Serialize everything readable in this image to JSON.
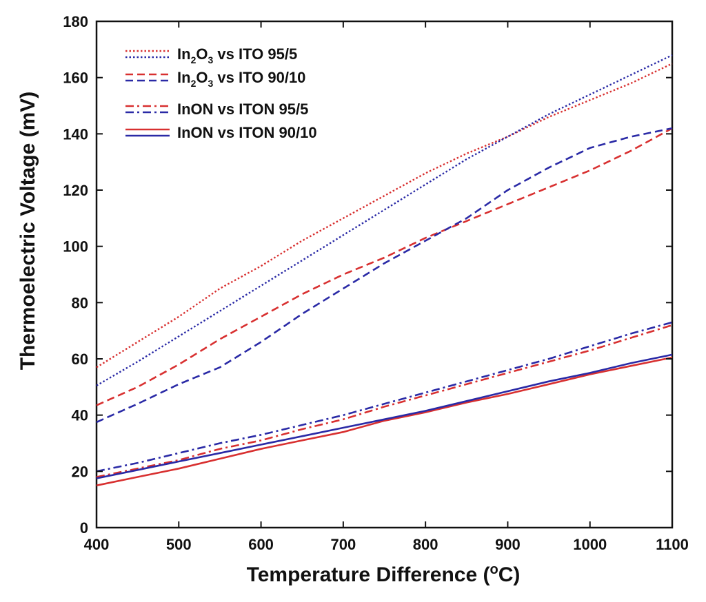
{
  "chart_data": {
    "type": "line",
    "title": "",
    "xlabel": {
      "prefix": "Temperature Difference (",
      "sup": "o",
      "suffix": "C)"
    },
    "ylabel": "Thermoelectric Voltage (mV)",
    "xlim": [
      400,
      1100
    ],
    "ylim": [
      0,
      180
    ],
    "xticks": [
      400,
      500,
      600,
      700,
      800,
      900,
      1000,
      1100
    ],
    "yticks": [
      0,
      20,
      40,
      60,
      80,
      100,
      120,
      140,
      160,
      180
    ],
    "grid": false,
    "legend_position": "top-left",
    "colors": {
      "red": "#d83030",
      "blue": "#2a2aa6",
      "axis": "#111111"
    },
    "x": [
      400,
      450,
      500,
      550,
      600,
      650,
      700,
      750,
      800,
      850,
      900,
      950,
      1000,
      1050,
      1100
    ],
    "legend": [
      {
        "id": "in2o3-95-5",
        "style": "dotted",
        "text": [
          {
            "t": "In"
          },
          {
            "t": "2",
            "sub": true
          },
          {
            "t": "O"
          },
          {
            "t": "3",
            "sub": true
          },
          {
            "t": "  vs ITO 95/5"
          }
        ]
      },
      {
        "id": "in2o3-90-10",
        "style": "dashed",
        "text": [
          {
            "t": "In"
          },
          {
            "t": "2",
            "sub": true
          },
          {
            "t": "O"
          },
          {
            "t": "3",
            "sub": true
          },
          {
            "t": "  vs ITO 90/10"
          }
        ]
      },
      {
        "id": "inon-95-5",
        "style": "dashdot",
        "text": [
          {
            "t": "InON  vs ITON 95/5"
          }
        ]
      },
      {
        "id": "inon-90-10",
        "style": "solid",
        "text": [
          {
            "t": "InON  vs ITON 90/10"
          }
        ]
      }
    ],
    "series": [
      {
        "name": "In2O3 vs ITO 95/5 (red)",
        "group": "in2o3-95-5",
        "color": "red",
        "style": "dotted",
        "values": [
          57,
          66,
          75,
          85,
          93,
          102,
          110,
          118,
          126,
          133,
          139,
          146,
          152,
          158,
          165
        ]
      },
      {
        "name": "In2O3 vs ITO 95/5 (blue)",
        "group": "in2o3-95-5",
        "color": "blue",
        "style": "dotted",
        "values": [
          50.5,
          59,
          68,
          77,
          86,
          95,
          104,
          113,
          122,
          131,
          139,
          147,
          154,
          161,
          168
        ]
      },
      {
        "name": "In2O3 vs ITO 90/10 (red)",
        "group": "in2o3-90-10",
        "color": "red",
        "style": "dashed",
        "values": [
          43.5,
          50,
          58,
          67,
          75,
          83,
          90,
          96,
          103,
          109,
          115,
          121,
          127,
          134,
          142
        ]
      },
      {
        "name": "In2O3 vs ITO 90/10 (blue)",
        "group": "in2o3-90-10",
        "color": "blue",
        "style": "dashed",
        "values": [
          37.5,
          44,
          51,
          57,
          66,
          76,
          85,
          94,
          102,
          110,
          120,
          128,
          135,
          139,
          142
        ]
      },
      {
        "name": "InON vs ITON 95/5 (red)",
        "group": "inon-95-5",
        "color": "red",
        "style": "dashdot",
        "values": [
          18,
          21,
          24,
          28,
          31,
          35,
          38.5,
          43,
          47,
          51,
          55,
          59,
          63,
          67.5,
          72
        ]
      },
      {
        "name": "InON vs ITON 95/5 (blue)",
        "group": "inon-95-5",
        "color": "blue",
        "style": "dashdot",
        "values": [
          20,
          23,
          26.5,
          30,
          33,
          36.5,
          40,
          44,
          48,
          52,
          56,
          60,
          64.5,
          69,
          73
        ]
      },
      {
        "name": "InON vs ITON 90/10 (red)",
        "group": "inon-90-10",
        "color": "red",
        "style": "solid",
        "values": [
          15,
          18,
          21,
          24.5,
          28,
          31,
          34,
          38,
          41,
          44.5,
          47.5,
          51,
          54.5,
          57.5,
          60.5
        ]
      },
      {
        "name": "InON vs ITON 90/10 (blue)",
        "group": "inon-90-10",
        "color": "blue",
        "style": "solid",
        "values": [
          17.5,
          20.5,
          23.5,
          26.5,
          29.5,
          32.5,
          35.5,
          38.5,
          41.5,
          45,
          48.5,
          52,
          55,
          58.5,
          61.5
        ]
      }
    ]
  }
}
